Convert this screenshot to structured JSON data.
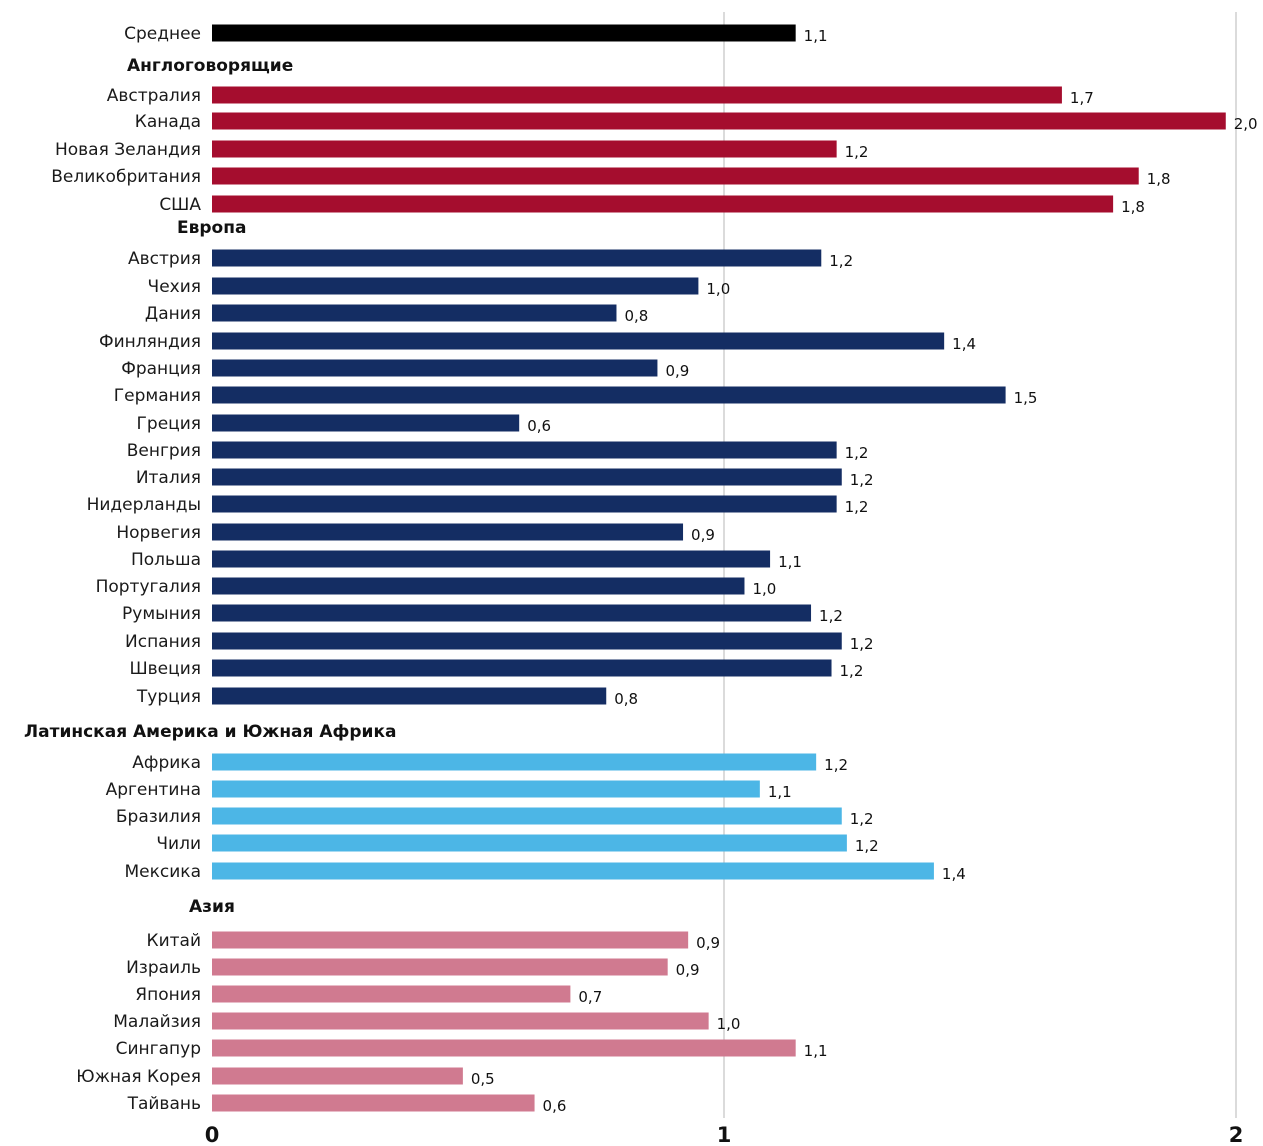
{
  "chart_data": {
    "type": "bar",
    "orientation": "horizontal",
    "xlim": [
      0,
      2
    ],
    "x_ticks": [
      "0",
      "1",
      "2"
    ],
    "grid": "vertical lines at ticks",
    "groups": [
      {
        "name": "",
        "color": "#000000",
        "items": [
          {
            "label": "Среднее",
            "value": 1.14,
            "value_label": "1,1"
          }
        ]
      },
      {
        "name": "Англоговорящие",
        "color": "#a50d2e",
        "items": [
          {
            "label": "Австралия",
            "value": 1.66,
            "value_label": "1,7"
          },
          {
            "label": "Канада",
            "value": 1.98,
            "value_label": "2,0"
          },
          {
            "label": "Новая Зеландия",
            "value": 1.22,
            "value_label": "1,2"
          },
          {
            "label": "Великобритания",
            "value": 1.81,
            "value_label": "1,8"
          },
          {
            "label": "США",
            "value": 1.76,
            "value_label": "1,8"
          }
        ]
      },
      {
        "name": "Европа",
        "color": "#142d63",
        "items": [
          {
            "label": "Австрия",
            "value": 1.19,
            "value_label": "1,2"
          },
          {
            "label": "Чехия",
            "value": 0.95,
            "value_label": "1,0"
          },
          {
            "label": "Дания",
            "value": 0.79,
            "value_label": "0,8"
          },
          {
            "label": "Финляндия",
            "value": 1.43,
            "value_label": "1,4"
          },
          {
            "label": "Франция",
            "value": 0.87,
            "value_label": "0,9"
          },
          {
            "label": "Германия",
            "value": 1.55,
            "value_label": "1,5"
          },
          {
            "label": "Греция",
            "value": 0.6,
            "value_label": "0,6"
          },
          {
            "label": "Венгрия",
            "value": 1.22,
            "value_label": "1,2"
          },
          {
            "label": "Италия",
            "value": 1.23,
            "value_label": "1,2"
          },
          {
            "label": "Нидерланды",
            "value": 1.22,
            "value_label": "1,2"
          },
          {
            "label": "Норвегия",
            "value": 0.92,
            "value_label": "0,9"
          },
          {
            "label": "Польша",
            "value": 1.09,
            "value_label": "1,1"
          },
          {
            "label": "Португалия",
            "value": 1.04,
            "value_label": "1,0"
          },
          {
            "label": "Румыния",
            "value": 1.17,
            "value_label": "1,2"
          },
          {
            "label": "Испания",
            "value": 1.23,
            "value_label": "1,2"
          },
          {
            "label": "Швеция",
            "value": 1.21,
            "value_label": "1,2"
          },
          {
            "label": "Турция",
            "value": 0.77,
            "value_label": "0,8"
          }
        ]
      },
      {
        "name": "Латинская Америка и Южная Африка",
        "color": "#4cb6e6",
        "items": [
          {
            "label": "Африка",
            "value": 1.18,
            "value_label": "1,2"
          },
          {
            "label": "Аргентина",
            "value": 1.07,
            "value_label": "1,1"
          },
          {
            "label": "Бразилия",
            "value": 1.23,
            "value_label": "1,2"
          },
          {
            "label": "Чили",
            "value": 1.24,
            "value_label": "1,2"
          },
          {
            "label": "Мексика",
            "value": 1.41,
            "value_label": "1,4"
          }
        ]
      },
      {
        "name": "Азия",
        "color": "#d07a90",
        "items": [
          {
            "label": "Китай",
            "value": 0.93,
            "value_label": "0,9"
          },
          {
            "label": "Израиль",
            "value": 0.89,
            "value_label": "0,9"
          },
          {
            "label": "Япония",
            "value": 0.7,
            "value_label": "0,7"
          },
          {
            "label": "Малайзия",
            "value": 0.97,
            "value_label": "1,0"
          },
          {
            "label": "Сингапур",
            "value": 1.14,
            "value_label": "1,1"
          },
          {
            "label": "Южная Корея",
            "value": 0.49,
            "value_label": "0,5"
          },
          {
            "label": "Тайвань",
            "value": 0.63,
            "value_label": "0,6"
          }
        ]
      }
    ]
  }
}
